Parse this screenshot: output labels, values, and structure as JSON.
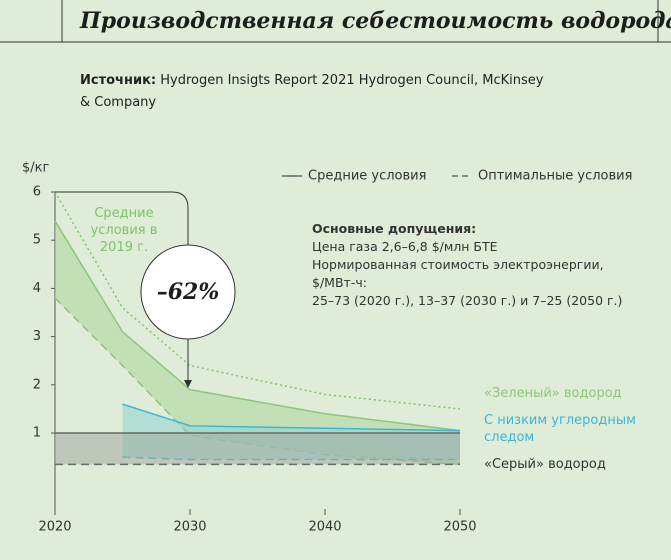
{
  "header": {
    "title": "Производственная себестоимость водорода",
    "source_label": "Источник:",
    "source": "Hydrogen Insigts Report 2021 Hydrogen Council, McKinsey & Company"
  },
  "chart_data": {
    "type": "band",
    "y_label": "$/кг",
    "xlim": [
      2020,
      2050
    ],
    "xticks": [
      2020,
      2030,
      2040,
      2050
    ],
    "ylim": [
      -0.7,
      6
    ],
    "yticks": [
      1,
      2,
      3,
      4,
      5,
      6
    ],
    "legend": [
      {
        "label": "Средние условия",
        "style": "solid"
      },
      {
        "label": "Оптимальные условия",
        "style": "dashed"
      }
    ],
    "series": [
      {
        "name": "«Зеленый» водород",
        "color": "#8cc67a",
        "fill": "#a9d69a",
        "x": [
          2020,
          2025,
          2030,
          2040,
          2050
        ],
        "upper": [
          5.4,
          3.1,
          1.9,
          1.4,
          1.05
        ],
        "lower": [
          3.8,
          2.4,
          0.95,
          0.55,
          0.35
        ]
      },
      {
        "name": "С низким углеродным следом",
        "color": "#3bb6d6",
        "fill": "#8fd3cf",
        "x": [
          2025,
          2030,
          2040,
          2050
        ],
        "upper": [
          1.6,
          1.15,
          1.1,
          1.05
        ],
        "lower": [
          0.5,
          0.45,
          0.45,
          0.45
        ]
      },
      {
        "name": "«Серый» водород",
        "color": "#666a66",
        "fill": "#a3aaa2",
        "x": [
          2020,
          2050
        ],
        "upper": [
          1.0,
          1.0
        ],
        "lower": [
          0.35,
          0.35
        ]
      }
    ],
    "reference": {
      "name": "Средние условия в 2019 г.",
      "color": "#7cc46a",
      "x": [
        2020,
        2025,
        2030,
        2040,
        2050
      ],
      "values": [
        6.0,
        3.6,
        2.4,
        1.8,
        1.5
      ]
    },
    "annotation": "–62%",
    "assumptions": {
      "heading": "Основные допущения:",
      "lines": [
        "Цена газа 2,6–6,8 $/млн БТЕ",
        "Нормированная стоимость электроэнергии,",
        "$/МВт-ч:",
        "25–73 (2020 г.), 13–37 (2030 г.) и 7–25 (2050 г.)"
      ]
    }
  }
}
